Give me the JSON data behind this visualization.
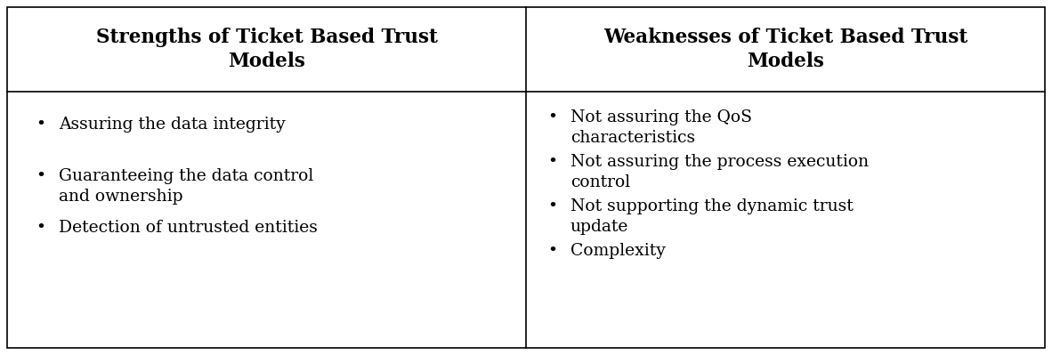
{
  "col1_header": "Strengths of Ticket Based Trust\nModels",
  "col2_header": "Weaknesses of Ticket Based Trust\nModels",
  "col1_items": [
    "Assuring the data integrity",
    "Guaranteeing the data control\nand ownership",
    "Detection of untrusted entities"
  ],
  "col2_items": [
    "Not assuring the QoS\ncharacteristics",
    "Not assuring the process execution\ncontrol",
    "Not supporting the dynamic trust\nupdate",
    "Complexity"
  ],
  "header_bg": "#ffffff",
  "body_bg": "#ffffff",
  "border_color": "#000000",
  "text_color": "#000000",
  "header_fontsize": 15.5,
  "body_fontsize": 13.5,
  "bullet": "•"
}
